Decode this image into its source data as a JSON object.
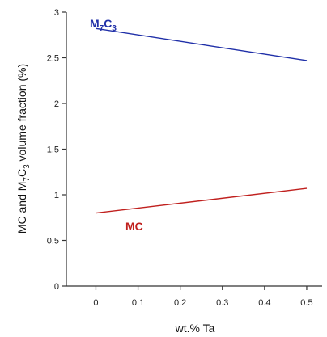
{
  "chart_data": {
    "type": "line",
    "x": [
      0,
      0.5
    ],
    "series": [
      {
        "name": "M7C3",
        "values": [
          2.82,
          2.47
        ],
        "color": "#1f2fa8"
      },
      {
        "name": "MC",
        "values": [
          0.8,
          1.07
        ],
        "color": "#c0201e"
      }
    ],
    "xlabel": "wt.% Ta",
    "ylabel_parts": {
      "a": "MC and M",
      "sub1": "7",
      "b": "C",
      "sub2": "3",
      "c": " volume fraction (%)"
    },
    "xlim": [
      -0.07,
      0.55
    ],
    "ylim": [
      0,
      3
    ],
    "x_ticks": [
      0,
      0.1,
      0.2,
      0.3,
      0.4,
      0.5
    ],
    "x_tick_labels": [
      "0",
      "0.1",
      "0.2",
      "0.3",
      "0.4",
      "0.5"
    ],
    "y_ticks": [
      0,
      0.5,
      1,
      1.5,
      2,
      2.5,
      3
    ],
    "y_tick_labels": [
      "0",
      "0.5",
      "1",
      "1.5",
      "2",
      "2.5",
      "3"
    ],
    "annotations": {
      "m7c3": {
        "main": "M",
        "sub1": "7",
        "mid": "C",
        "sub2": "3",
        "color": "#1f2fa8"
      },
      "mc": {
        "text": "MC",
        "color": "#c0201e"
      }
    },
    "grid": false,
    "legend": "none"
  }
}
